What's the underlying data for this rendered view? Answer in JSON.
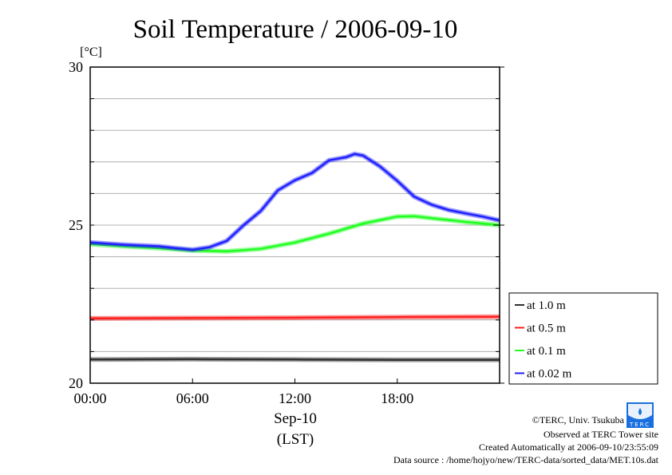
{
  "chart_data": {
    "type": "line",
    "title": "Soil Temperature / 2006-09-10",
    "ylabel": "[°C]",
    "xlabel": "Sep-10",
    "xlabel2": "(LST)",
    "xlim": [
      0,
      24
    ],
    "ylim": [
      20,
      30
    ],
    "x_ticks": [
      {
        "v": 0,
        "label": "00:00"
      },
      {
        "v": 6,
        "label": "06:00"
      },
      {
        "v": 12,
        "label": "12:00"
      },
      {
        "v": 18,
        "label": "18:00"
      }
    ],
    "y_ticks": [
      {
        "v": 20,
        "label": "20"
      },
      {
        "v": 25,
        "label": "25"
      },
      {
        "v": 30,
        "label": "30"
      }
    ],
    "grid": true,
    "legend_position": "right",
    "series": [
      {
        "name": "at 1.0 m",
        "color": "#303030",
        "points": [
          [
            0,
            20.75
          ],
          [
            6,
            20.76
          ],
          [
            12,
            20.75
          ],
          [
            18,
            20.74
          ],
          [
            24,
            20.74
          ]
        ]
      },
      {
        "name": "at 0.5 m",
        "color": "#ff2020",
        "points": [
          [
            0,
            22.05
          ],
          [
            6,
            22.06
          ],
          [
            12,
            22.07
          ],
          [
            18,
            22.09
          ],
          [
            24,
            22.1
          ]
        ]
      },
      {
        "name": "at 0.1 m",
        "color": "#20ff20",
        "points": [
          [
            0,
            24.4
          ],
          [
            2,
            24.33
          ],
          [
            4,
            24.27
          ],
          [
            6,
            24.2
          ],
          [
            8,
            24.17
          ],
          [
            10,
            24.25
          ],
          [
            12,
            24.45
          ],
          [
            14,
            24.73
          ],
          [
            16,
            25.05
          ],
          [
            18,
            25.27
          ],
          [
            19,
            25.28
          ],
          [
            20,
            25.22
          ],
          [
            22,
            25.1
          ],
          [
            24,
            25.0
          ]
        ]
      },
      {
        "name": "at 0.02 m",
        "color": "#2020ff",
        "points": [
          [
            0,
            24.45
          ],
          [
            2,
            24.38
          ],
          [
            4,
            24.33
          ],
          [
            5,
            24.27
          ],
          [
            6,
            24.22
          ],
          [
            7,
            24.3
          ],
          [
            8,
            24.5
          ],
          [
            9,
            25.0
          ],
          [
            10,
            25.45
          ],
          [
            11,
            26.1
          ],
          [
            12,
            26.42
          ],
          [
            13,
            26.65
          ],
          [
            14,
            27.05
          ],
          [
            15,
            27.15
          ],
          [
            15.5,
            27.25
          ],
          [
            16,
            27.2
          ],
          [
            17,
            26.85
          ],
          [
            18,
            26.4
          ],
          [
            19,
            25.9
          ],
          [
            20,
            25.65
          ],
          [
            21,
            25.48
          ],
          [
            22,
            25.37
          ],
          [
            23,
            25.27
          ],
          [
            24,
            25.15
          ]
        ]
      }
    ]
  },
  "footer": {
    "copyright": "©TERC, Univ. Tsukuba",
    "observed": "Observed at TERC Tower site",
    "created": "Created Automatically at 2006-09-10/23:55:09",
    "source": "Data source : /home/hojyo/new/TERC-data/sorted_data/MET.10s.dat",
    "logo_text": "TERC"
  }
}
